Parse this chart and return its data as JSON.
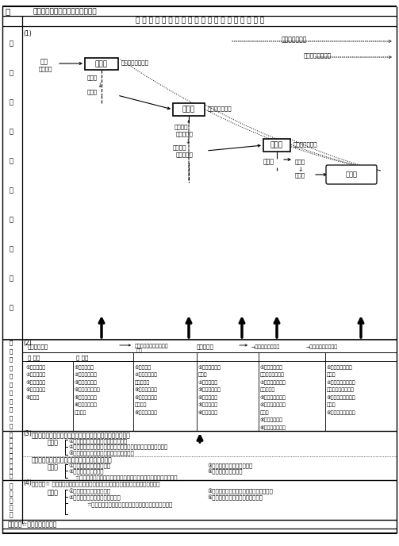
{
  "title_left": "表",
  "title_right": "地域の地域活力向上の過程と方策",
  "header": "活 力 向 上 過 程 の 要 点 と そ の 方 面 ・ 要 件 の 内 容",
  "bg_color": "#ffffff",
  "text_color": "#000000",
  "fig_width": 5.03,
  "fig_height": 6.88,
  "dpi": 100
}
